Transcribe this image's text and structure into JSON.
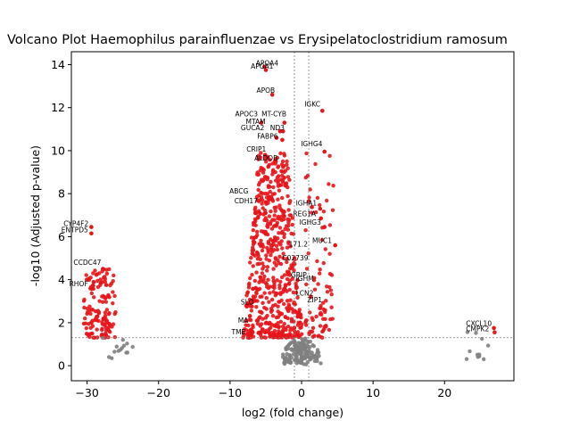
{
  "chart_data": {
    "type": "scatter",
    "title": "Volcano Plot Haemophilus parainfluenzae vs Erysipelatoclostridium ramosum",
    "xlabel": "log2 (fold change)",
    "ylabel": "-log10 (Adjusted p-value)",
    "xlim": [
      -32.2,
      29.7
    ],
    "ylim": [
      -0.7,
      14.6
    ],
    "xticks": [
      -30,
      -20,
      -10,
      0,
      10,
      20
    ],
    "yticks": [
      0,
      2,
      4,
      6,
      8,
      10,
      12,
      14
    ],
    "grid": false,
    "thresholds": {
      "fold_change_lines": [
        -1,
        1
      ],
      "pvalue_line": 1.3
    },
    "colors": {
      "significant": "#e8141a",
      "nonsignificant": "#808080",
      "threshold_line": "#808080"
    },
    "labeled_points": [
      {
        "gene": "APOA4",
        "x": -5.2,
        "y": 13.9
      },
      {
        "gene": "APOA1",
        "x": -5.0,
        "y": 13.75
      },
      {
        "gene": "APOB",
        "x": -4.1,
        "y": 12.6
      },
      {
        "gene": "IGKC",
        "x": 2.9,
        "y": 11.85
      },
      {
        "gene": "APOC3",
        "x": -5.6,
        "y": 11.3
      },
      {
        "gene": "MT-CYB",
        "x": -2.4,
        "y": 11.3
      },
      {
        "gene": "GUCA2B",
        "x": -3.0,
        "y": 10.9
      },
      {
        "gene": "GUCA2A",
        "x": -3.5,
        "y": 10.6
      },
      {
        "gene": "ND3",
        "x": -2.6,
        "y": 10.9
      },
      {
        "gene": "FABP6",
        "x": -2.7,
        "y": 10.5
      },
      {
        "gene": "IGHG4",
        "x": 3.2,
        "y": 9.95
      },
      {
        "gene": "CRIP1",
        "x": -5.1,
        "y": 9.8
      },
      {
        "gene": "ALDOB",
        "x": -3.6,
        "y": 9.5
      },
      {
        "gene": "CDH17",
        "x": -5.0,
        "y": 7.6
      },
      {
        "gene": "IGHA1",
        "x": 2.6,
        "y": 7.3
      },
      {
        "gene": "REG1A",
        "x": 2.7,
        "y": 6.85
      },
      {
        "gene": "IGHG3",
        "x": 3.2,
        "y": 6.45
      },
      {
        "gene": "CYP4F2",
        "x": -29.4,
        "y": 6.45
      },
      {
        "gene": "ENTPD5",
        "x": -29.4,
        "y": 6.15
      },
      {
        "gene": "MUC1",
        "x": 4.7,
        "y": 5.6
      },
      {
        "gene": "CCDC47",
        "x": -27.8,
        "y": 4.5
      },
      {
        "gene": "LCN2",
        "x": 1.3,
        "y": 3.2
      },
      {
        "gene": "CXCL10",
        "x": 26.9,
        "y": 1.75
      },
      {
        "gene": "CMPK2",
        "x": 27.0,
        "y": 1.55
      }
    ],
    "label_texts": [
      {
        "text": "APOA4",
        "x": -6.4,
        "y": 13.95
      },
      {
        "text": "APOA1",
        "x": -7.1,
        "y": 13.82
      },
      {
        "text": "APOB",
        "x": -6.3,
        "y": 12.7
      },
      {
        "text": "IGKC",
        "x": 0.4,
        "y": 12.05
      },
      {
        "text": "APOC3",
        "x": -9.3,
        "y": 11.6
      },
      {
        "text": "MT-CYB",
        "x": -5.6,
        "y": 11.6
      },
      {
        "text": "MTAM",
        "x": -7.8,
        "y": 11.25
      },
      {
        "text": "GUCA2",
        "x": -8.5,
        "y": 10.95
      },
      {
        "text": "ND3",
        "x": -4.4,
        "y": 10.95
      },
      {
        "text": "FABP6",
        "x": -6.2,
        "y": 10.55
      },
      {
        "text": "IGHG4",
        "x": -0.1,
        "y": 10.2
      },
      {
        "text": "CRIP1",
        "x": -7.7,
        "y": 9.95
      },
      {
        "text": "ALDOB",
        "x": -6.6,
        "y": 9.55
      },
      {
        "text": "ABCG",
        "x": -10.1,
        "y": 8.0
      },
      {
        "text": "CDH17",
        "x": -9.4,
        "y": 7.55
      },
      {
        "text": "IGHA1",
        "x": -0.8,
        "y": 7.45
      },
      {
        "text": "REG1A",
        "x": -1.2,
        "y": 6.95
      },
      {
        "text": "IGHG3",
        "x": -0.3,
        "y": 6.55
      },
      {
        "text": "CYP4F2",
        "x": -33.3,
        "y": 6.5
      },
      {
        "text": "ENTPD5",
        "x": -33.6,
        "y": 6.2
      },
      {
        "text": "MUC1",
        "x": 1.5,
        "y": 5.7
      },
      {
        "text": "171.2",
        "x": -1.8,
        "y": 5.55
      },
      {
        "text": "C02739",
        "x": -2.7,
        "y": 4.9
      },
      {
        "text": "CCDC47",
        "x": -31.9,
        "y": 4.7
      },
      {
        "text": "GRIP",
        "x": -1.5,
        "y": 4.1
      },
      {
        "text": "IGHM",
        "x": -0.8,
        "y": 3.95
      },
      {
        "text": "RHOF",
        "x": -32.5,
        "y": 3.7
      },
      {
        "text": "LCN2",
        "x": -0.8,
        "y": 3.25
      },
      {
        "text": "ZIP1",
        "x": 0.8,
        "y": 2.95
      },
      {
        "text": "SLO",
        "x": -8.5,
        "y": 2.85
      },
      {
        "text": "MA",
        "x": -8.9,
        "y": 2.0
      },
      {
        "text": "TME",
        "x": -9.8,
        "y": 1.45
      },
      {
        "text": "CXCL10",
        "x": 23.0,
        "y": 1.85
      },
      {
        "text": "CMPK2",
        "x": 23.0,
        "y": 1.6
      }
    ],
    "point_clouds": [
      {
        "name": "left-cluster",
        "x_range": [
          -30.5,
          -26
        ],
        "y_range": [
          1.3,
          4.5
        ],
        "count": 140,
        "significant": true
      },
      {
        "name": "left-tail-ns",
        "x_range": [
          -28,
          -23.5
        ],
        "y_range": [
          0.3,
          1.3
        ],
        "count": 14,
        "significant": false
      },
      {
        "name": "center-sig",
        "x_range": [
          -8.5,
          4.5
        ],
        "y_range": [
          1.3,
          9.9
        ],
        "count": 700,
        "significant": true
      },
      {
        "name": "center-ns",
        "x_range": [
          -2.5,
          3.2
        ],
        "y_range": [
          0.0,
          1.3
        ],
        "count": 160,
        "significant": false
      },
      {
        "name": "right-cluster",
        "x_range": [
          22.8,
          27
        ],
        "y_range": [
          0.3,
          1.6
        ],
        "count": 11,
        "significant": false
      }
    ]
  }
}
